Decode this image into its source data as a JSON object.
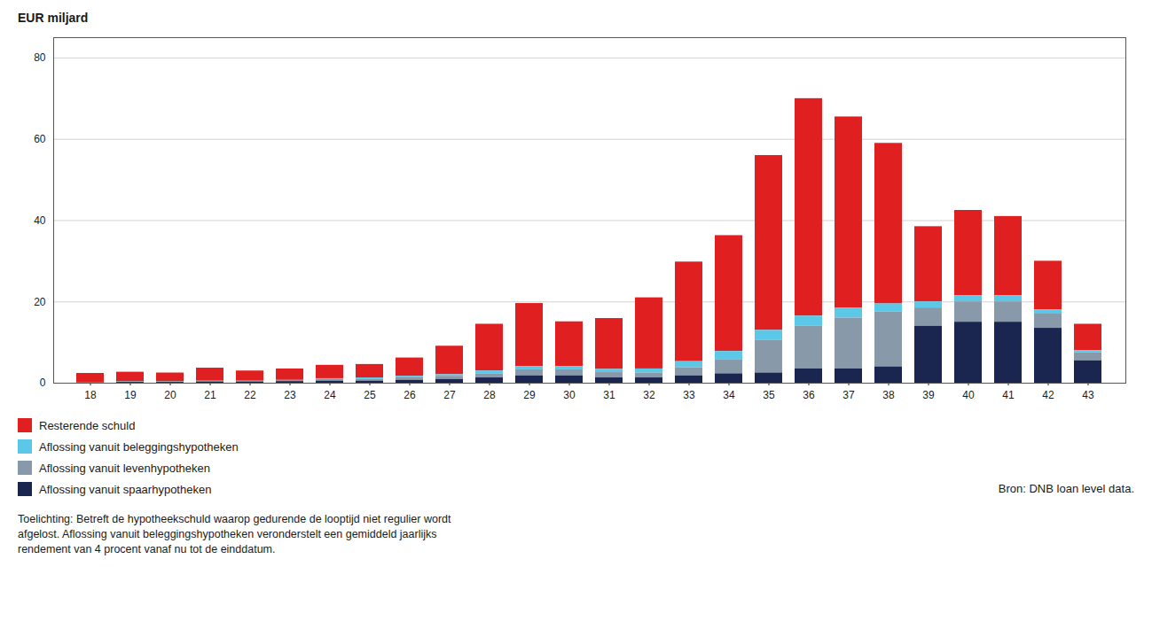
{
  "chart_data": {
    "type": "bar",
    "stacked": true,
    "y_label": "EUR miljard",
    "categories": [
      "18",
      "19",
      "20",
      "21",
      "22",
      "23",
      "24",
      "25",
      "26",
      "27",
      "28",
      "29",
      "30",
      "31",
      "32",
      "33",
      "34",
      "35",
      "36",
      "37",
      "38",
      "39",
      "40",
      "41",
      "42",
      "43"
    ],
    "series": [
      {
        "name": "Resterende schuld",
        "color": "#e02020",
        "values": [
          2.2,
          2.3,
          2.1,
          3.2,
          2.5,
          2.8,
          3.3,
          3.3,
          4.5,
          7.0,
          11.5,
          15.5,
          11.0,
          12.5,
          17.5,
          24.5,
          28.5,
          43.0,
          53.5,
          47.0,
          39.5,
          18.5,
          21.0,
          19.5,
          12.0,
          6.5
        ]
      },
      {
        "name": "Aflossing vanuit beleggingshypotheken",
        "color": "#5bc8e8",
        "values": [
          0.0,
          0.0,
          0.0,
          0.0,
          0.0,
          0.0,
          0.2,
          0.3,
          0.4,
          0.4,
          0.7,
          0.8,
          0.8,
          0.8,
          1.0,
          1.5,
          2.0,
          2.5,
          2.5,
          2.5,
          2.0,
          1.5,
          1.5,
          1.5,
          1.0,
          0.5
        ]
      },
      {
        "name": "Aflossing vanuit levenhypotheken",
        "color": "#8899aa",
        "values": [
          0.1,
          0.2,
          0.2,
          0.2,
          0.2,
          0.3,
          0.4,
          0.5,
          0.6,
          0.8,
          1.0,
          1.5,
          1.5,
          1.3,
          1.2,
          2.0,
          3.5,
          8.0,
          10.5,
          12.5,
          13.5,
          4.5,
          5.0,
          5.0,
          3.5,
          2.0
        ]
      },
      {
        "name": "Aflossing vanuit spaarhypotheken",
        "color": "#1a2550",
        "values": [
          0.1,
          0.2,
          0.2,
          0.3,
          0.3,
          0.4,
          0.5,
          0.5,
          0.7,
          0.9,
          1.3,
          1.8,
          1.8,
          1.3,
          1.3,
          1.8,
          2.3,
          2.5,
          3.5,
          3.5,
          4.0,
          14.0,
          15.0,
          15.0,
          13.5,
          5.5
        ]
      }
    ],
    "ylim": [
      0,
      85
    ],
    "yticks": [
      0,
      20,
      40,
      60,
      80
    ],
    "grid": true,
    "legend": "bottom",
    "annotations": [
      "Bron: DNB loan level data.",
      "Toelichting: Betreft de hypotheekschuld waarop gedurende de looptijd niet regulier wordt\nafgelost. Aflossing vanuit beleggingshypotheken veronderstelt een gemiddeld jaarlijks\nrendement van 4 procent vanaf nu tot de einddatum."
    ]
  }
}
